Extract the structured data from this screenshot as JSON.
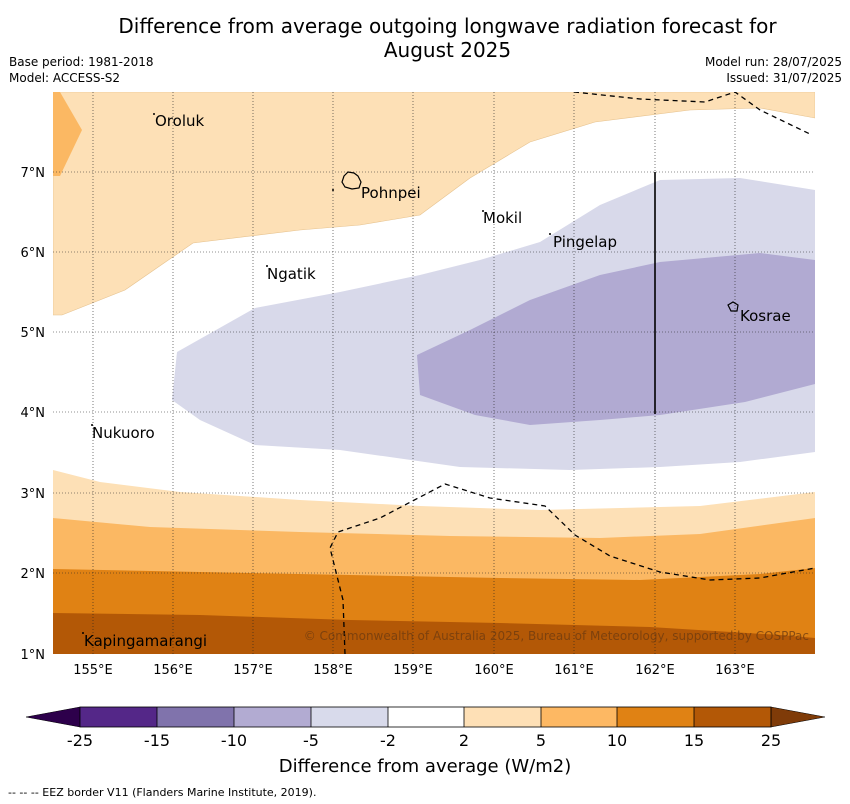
{
  "title_line1": "Difference from average outgoing longwave radiation forecast for",
  "title_line2": "August 2025",
  "base_period": "Base period: 1981-2018",
  "model": "Model: ACCESS-S2",
  "model_run": "Model run: 28/07/2025",
  "issued": "Issued: 31/07/2025",
  "map": {
    "lon_labels": [
      "155°E",
      "156°E",
      "157°E",
      "158°E",
      "159°E",
      "160°E",
      "161°E",
      "162°E",
      "163°E"
    ],
    "lat_labels": [
      "7°N",
      "6°N",
      "5°N",
      "4°N",
      "3°N",
      "2°N",
      "1°N"
    ],
    "places": {
      "oroluk": "Oroluk",
      "pohnpei": "Pohnpei",
      "mokil": "Mokil",
      "pingelap": "Pingelap",
      "ngatik": "Ngatik",
      "kosrae": "Kosrae",
      "nukuoro": "Nukuoro",
      "kapingamarangi": "Kapingamarangi"
    },
    "copyright": "© Commonwealth of Australia 2025, Bureau of Meteorology, supported by COSPPac",
    "colors": {
      "neg_2_5": "#d8d9ea",
      "neg_5_10": "#b1aad2",
      "pos_2_5": "#fde0b6",
      "pos_5_10": "#fbb863",
      "pos_10_15": "#e08214",
      "pos_15_25": "#b35806"
    }
  },
  "colorbar": {
    "ticks": [
      "-25",
      "-15",
      "-10",
      "-5",
      "-2",
      "2",
      "5",
      "10",
      "15",
      "25"
    ],
    "colors": [
      "#2d004b",
      "#542788",
      "#8073ac",
      "#b2abd2",
      "#d8daeb",
      "#ffffff",
      "#fee0b6",
      "#fdb863",
      "#e08214",
      "#b35806",
      "#7f3b08"
    ],
    "label": "Difference from average (W/m2)"
  },
  "footnote": "--  --  -- EEZ border V11 (Flanders Marine Institute, 2019)."
}
